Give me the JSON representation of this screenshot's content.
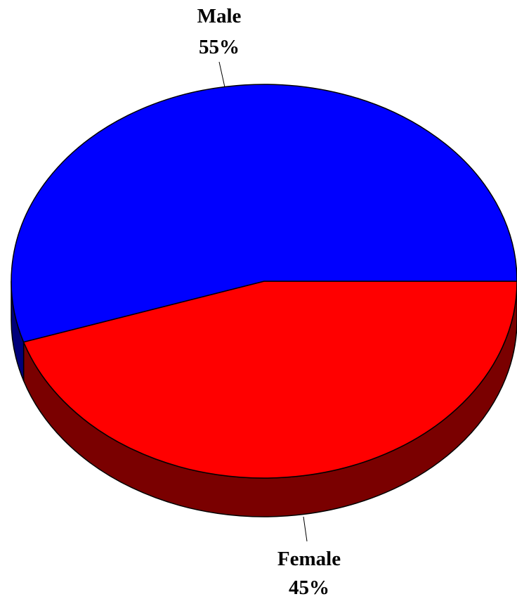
{
  "chart_data": {
    "type": "pie",
    "style": "3d",
    "slices": [
      {
        "label": "Male",
        "value": 55,
        "value_label": "55%",
        "color": "#0000FF",
        "side_color": "#00007A"
      },
      {
        "label": "Female",
        "value": 45,
        "value_label": "45%",
        "color": "#FF0000",
        "side_color": "#7A0000"
      }
    ],
    "title": "",
    "legend": "none"
  }
}
